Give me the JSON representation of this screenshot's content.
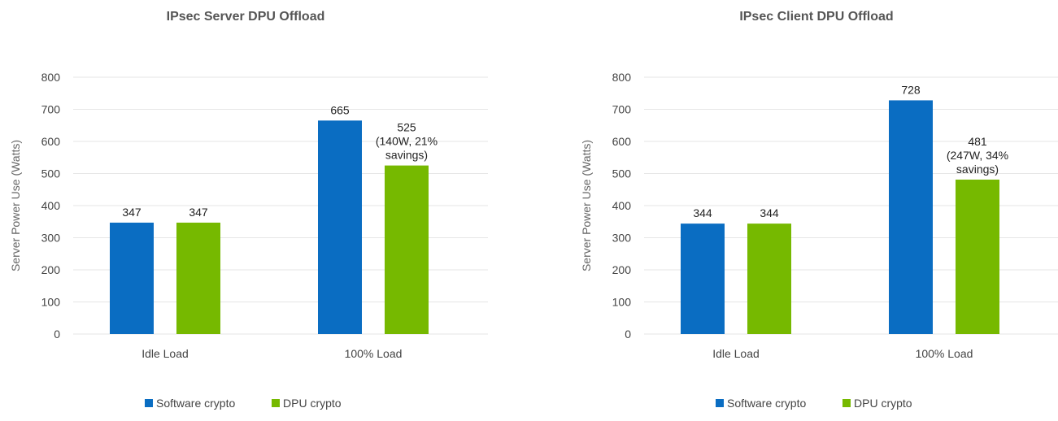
{
  "colors": {
    "software": "#0a6dc2",
    "dpu": "#76b900"
  },
  "chart_data": [
    {
      "type": "bar",
      "title": "IPsec Server DPU Offload",
      "ylabel": "Server Power Use (Watts)",
      "ylim": [
        0,
        800
      ],
      "yticks": [
        0,
        100,
        200,
        300,
        400,
        500,
        600,
        700,
        800
      ],
      "categories": [
        "Idle Load",
        "100% Load"
      ],
      "series": [
        {
          "name": "Software crypto",
          "values": [
            347,
            665
          ]
        },
        {
          "name": "DPU crypto",
          "values": [
            347,
            525
          ]
        }
      ],
      "data_labels": [
        [
          [
            "347"
          ],
          [
            "665"
          ]
        ],
        [
          [
            "347"
          ],
          [
            "525",
            "(140W, 21%",
            "savings)"
          ]
        ]
      ],
      "grid": true,
      "legend": "bottom"
    },
    {
      "type": "bar",
      "title": "IPsec Client DPU Offload",
      "ylabel": "Server Power Use (Watts)",
      "ylim": [
        0,
        800
      ],
      "yticks": [
        0,
        100,
        200,
        300,
        400,
        500,
        600,
        700,
        800
      ],
      "categories": [
        "Idle Load",
        "100% Load"
      ],
      "series": [
        {
          "name": "Software crypto",
          "values": [
            344,
            728
          ]
        },
        {
          "name": "DPU crypto",
          "values": [
            344,
            481
          ]
        }
      ],
      "data_labels": [
        [
          [
            "344"
          ],
          [
            "728"
          ]
        ],
        [
          [
            "344"
          ],
          [
            "481",
            "(247W, 34%",
            "savings)"
          ]
        ]
      ],
      "grid": true,
      "legend": "bottom"
    }
  ]
}
